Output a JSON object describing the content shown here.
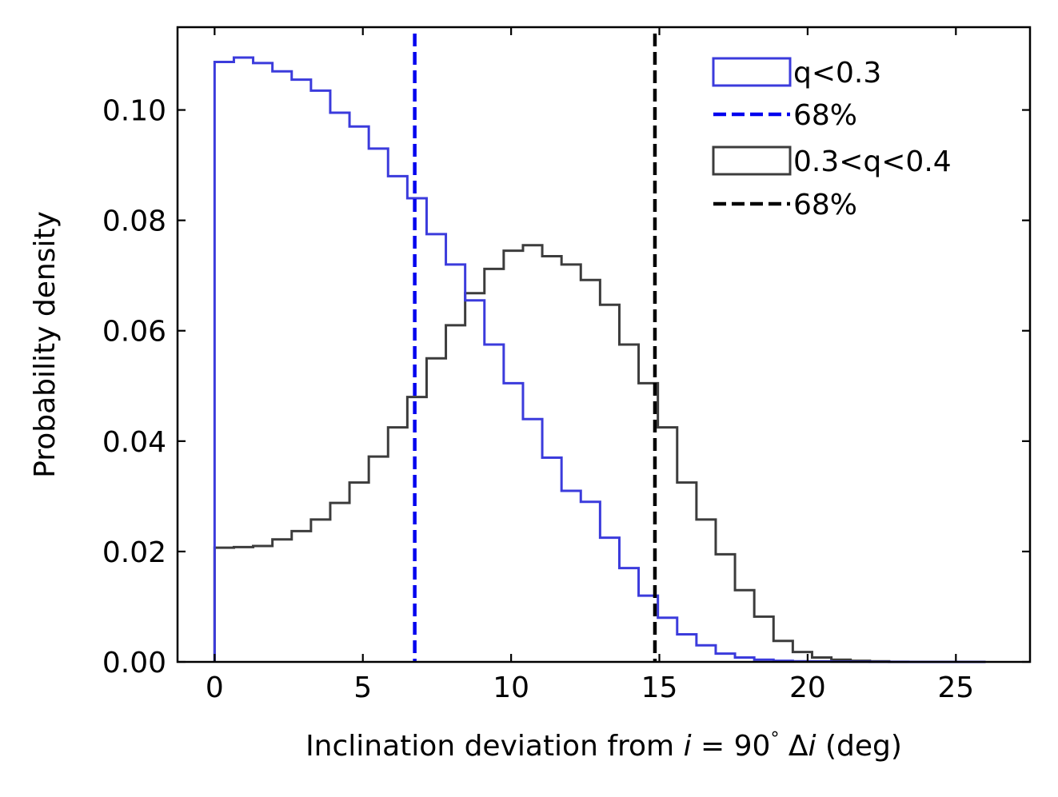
{
  "chart_data": {
    "type": "histogram",
    "xlabel": {
      "prefix": "Inclination deviation from ",
      "i": "i",
      "eq": " = 90",
      "deg": "°",
      "delta": " Δ",
      "i2": "i",
      "suffix": " (deg)"
    },
    "ylabel": "Probability density",
    "xlim": [
      -1.25,
      27.5
    ],
    "ylim": [
      0,
      0.115
    ],
    "xticks": [
      0,
      5,
      10,
      15,
      20,
      25
    ],
    "xtick_labels": [
      "0",
      "5",
      "10",
      "15",
      "20",
      "25"
    ],
    "yticks": [
      0,
      0.02,
      0.04,
      0.06,
      0.08,
      0.1
    ],
    "ytick_labels": [
      "0.00",
      "0.02",
      "0.04",
      "0.06",
      "0.08",
      "0.10"
    ],
    "bin_edges": [
      0.0,
      0.65,
      1.3,
      1.95,
      2.6,
      3.25,
      3.9,
      4.55,
      5.2,
      5.85,
      6.5,
      7.15,
      7.8,
      8.45,
      9.1,
      9.75,
      10.4,
      11.05,
      11.7,
      12.35,
      13.0,
      13.65,
      14.3,
      14.95,
      15.6,
      16.25,
      16.9,
      17.55,
      18.2,
      18.85,
      19.5,
      20.15,
      20.8,
      21.45,
      22.1,
      22.75,
      23.4,
      24.05,
      24.7,
      25.35,
      26.0
    ],
    "series": [
      {
        "name": "q<0.3",
        "color": "#3b3bdc",
        "values": [
          0.1087,
          0.1095,
          0.1085,
          0.107,
          0.1055,
          0.1035,
          0.0995,
          0.097,
          0.093,
          0.088,
          0.084,
          0.0775,
          0.072,
          0.0655,
          0.0575,
          0.0505,
          0.044,
          0.037,
          0.031,
          0.029,
          0.0225,
          0.017,
          0.012,
          0.008,
          0.005,
          0.003,
          0.0015,
          0.0008,
          0.0004,
          0.0002,
          0.0001,
          0.0001,
          5e-05,
          3e-05,
          2e-05,
          1e-05,
          0.0,
          0.0,
          0.0,
          0.0
        ]
      },
      {
        "name": "0.3<q<0.4",
        "color": "#3c3c3c",
        "values": [
          0.0207,
          0.0208,
          0.021,
          0.0222,
          0.0237,
          0.0258,
          0.0288,
          0.0325,
          0.0372,
          0.0425,
          0.048,
          0.055,
          0.061,
          0.0668,
          0.0712,
          0.0745,
          0.0755,
          0.0735,
          0.072,
          0.0692,
          0.0647,
          0.0575,
          0.0505,
          0.0425,
          0.0325,
          0.0258,
          0.0195,
          0.013,
          0.0082,
          0.0038,
          0.0018,
          0.0008,
          0.0004,
          0.0002,
          0.0001,
          0.0,
          0.0,
          0.0,
          0.0,
          0.0
        ]
      }
    ],
    "vlines": [
      {
        "name": "68%",
        "x": 6.75,
        "color": "#0000ee"
      },
      {
        "name": "68%",
        "x": 14.85,
        "color": "#000000"
      }
    ],
    "legend": {
      "placement": "top-right",
      "entries": [
        "q<0.3",
        "68%",
        "0.3<q<0.4",
        "68%"
      ]
    }
  }
}
